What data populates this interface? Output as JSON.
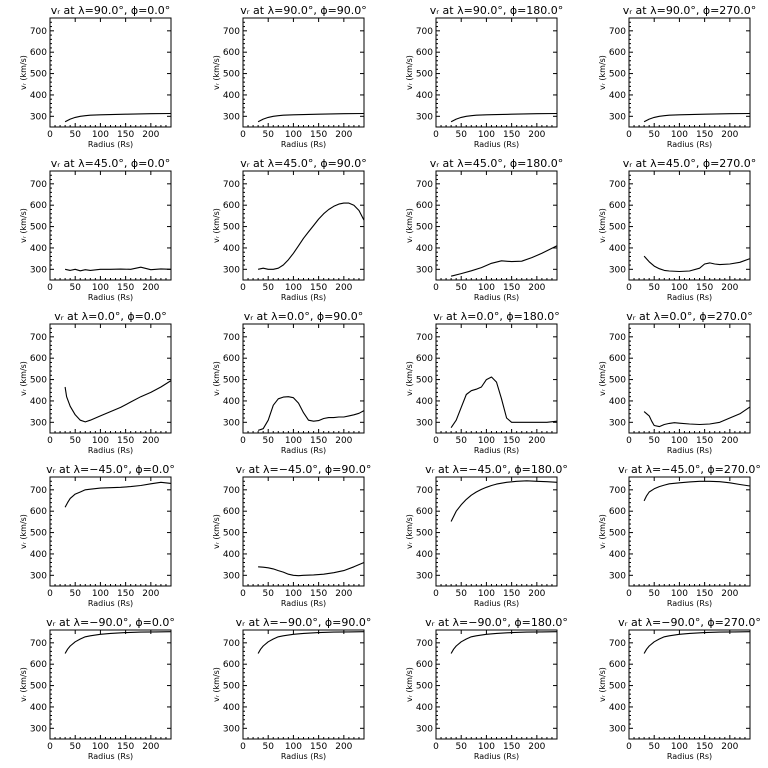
{
  "charts": {
    "xlabel": "Radius (Rs)",
    "ylabel": "vᵣ (km/s)",
    "xticks": [
      "0",
      "50",
      "100",
      "150",
      "200"
    ],
    "yticks": [
      "300",
      "400",
      "500",
      "600",
      "700"
    ]
  },
  "chart_data": [
    {
      "type": "line",
      "title": "vᵣ at λ=90.0°, ϕ=0.0°",
      "xlabel": "Radius (Rs)",
      "ylabel": "vᵣ (km/s)",
      "xlim": [
        0,
        240
      ],
      "ylim": [
        250,
        760
      ],
      "x": [
        30,
        40,
        50,
        60,
        70,
        80,
        100,
        120,
        150,
        200,
        240
      ],
      "y": [
        275,
        287,
        295,
        300,
        303,
        305,
        307,
        308,
        310,
        312,
        313
      ]
    },
    {
      "type": "line",
      "title": "vᵣ at λ=90.0°, ϕ=90.0°",
      "xlabel": "Radius (Rs)",
      "ylabel": "vᵣ (km/s)",
      "xlim": [
        0,
        240
      ],
      "ylim": [
        250,
        760
      ],
      "x": [
        30,
        40,
        50,
        60,
        70,
        80,
        100,
        120,
        150,
        200,
        240
      ],
      "y": [
        275,
        287,
        295,
        300,
        303,
        305,
        307,
        308,
        310,
        312,
        313
      ]
    },
    {
      "type": "line",
      "title": "vᵣ at λ=90.0°, ϕ=180.0°",
      "xlabel": "Radius (Rs)",
      "ylabel": "vᵣ (km/s)",
      "xlim": [
        0,
        240
      ],
      "ylim": [
        250,
        760
      ],
      "x": [
        30,
        40,
        50,
        60,
        70,
        80,
        100,
        120,
        150,
        200,
        240
      ],
      "y": [
        275,
        287,
        295,
        300,
        303,
        305,
        307,
        308,
        310,
        312,
        313
      ]
    },
    {
      "type": "line",
      "title": "vᵣ at λ=90.0°, ϕ=270.0°",
      "xlabel": "Radius (Rs)",
      "ylabel": "vᵣ (km/s)",
      "xlim": [
        0,
        240
      ],
      "ylim": [
        250,
        760
      ],
      "x": [
        30,
        40,
        50,
        60,
        70,
        80,
        100,
        120,
        150,
        200,
        240
      ],
      "y": [
        275,
        287,
        295,
        300,
        303,
        305,
        307,
        308,
        310,
        312,
        313
      ]
    },
    {
      "type": "line",
      "title": "vᵣ at λ=45.0°, ϕ=0.0°",
      "xlabel": "Radius (Rs)",
      "ylabel": "vᵣ (km/s)",
      "xlim": [
        0,
        240
      ],
      "ylim": [
        250,
        760
      ],
      "x": [
        30,
        40,
        50,
        60,
        70,
        80,
        100,
        120,
        140,
        160,
        180,
        200,
        220,
        240
      ],
      "y": [
        300,
        295,
        300,
        293,
        298,
        295,
        300,
        300,
        301,
        300,
        310,
        298,
        302,
        300
      ]
    },
    {
      "type": "line",
      "title": "vᵣ at λ=45.0°, ϕ=90.0°",
      "xlabel": "Radius (Rs)",
      "ylabel": "vᵣ (km/s)",
      "xlim": [
        0,
        240
      ],
      "ylim": [
        250,
        760
      ],
      "x": [
        30,
        40,
        50,
        60,
        70,
        80,
        90,
        100,
        110,
        120,
        130,
        140,
        150,
        160,
        170,
        180,
        190,
        200,
        210,
        220,
        230,
        240
      ],
      "y": [
        300,
        305,
        300,
        300,
        305,
        320,
        345,
        375,
        410,
        445,
        475,
        505,
        535,
        560,
        580,
        595,
        605,
        610,
        610,
        600,
        575,
        530
      ]
    },
    {
      "type": "line",
      "title": "vᵣ at λ=45.0°, ϕ=180.0°",
      "xlabel": "Radius (Rs)",
      "ylabel": "vᵣ (km/s)",
      "xlim": [
        0,
        240
      ],
      "ylim": [
        250,
        760
      ],
      "x": [
        30,
        50,
        70,
        90,
        110,
        130,
        150,
        170,
        190,
        210,
        240
      ],
      "y": [
        268,
        280,
        293,
        308,
        328,
        340,
        336,
        338,
        355,
        375,
        410
      ]
    },
    {
      "type": "line",
      "title": "vᵣ at λ=45.0°, ϕ=270.0°",
      "xlabel": "Radius (Rs)",
      "ylabel": "vᵣ (km/s)",
      "xlim": [
        0,
        240
      ],
      "ylim": [
        250,
        760
      ],
      "x": [
        30,
        40,
        50,
        60,
        70,
        80,
        100,
        120,
        140,
        150,
        160,
        170,
        180,
        200,
        220,
        240
      ],
      "y": [
        362,
        335,
        315,
        303,
        295,
        292,
        290,
        292,
        305,
        325,
        330,
        325,
        322,
        325,
        333,
        350
      ]
    },
    {
      "type": "line",
      "title": "vᵣ at λ=0.0°, ϕ=0.0°",
      "xlabel": "Radius (Rs)",
      "ylabel": "vᵣ (km/s)",
      "xlim": [
        0,
        240
      ],
      "ylim": [
        250,
        760
      ],
      "x": [
        30,
        33,
        40,
        50,
        60,
        70,
        80,
        100,
        120,
        140,
        160,
        180,
        200,
        220,
        240
      ],
      "y": [
        465,
        420,
        375,
        335,
        310,
        302,
        310,
        330,
        350,
        370,
        395,
        420,
        440,
        465,
        495
      ]
    },
    {
      "type": "line",
      "title": "vᵣ at λ=0.0°, ϕ=90.0°",
      "xlabel": "Radius (Rs)",
      "ylabel": "vᵣ (km/s)",
      "xlim": [
        0,
        240
      ],
      "ylim": [
        250,
        760
      ],
      "x": [
        30,
        40,
        50,
        60,
        70,
        80,
        90,
        100,
        110,
        120,
        130,
        140,
        150,
        160,
        170,
        180,
        190,
        200,
        210,
        220,
        230,
        240
      ],
      "y": [
        262,
        270,
        310,
        380,
        410,
        418,
        420,
        415,
        390,
        345,
        310,
        305,
        308,
        318,
        322,
        322,
        325,
        325,
        330,
        335,
        342,
        355
      ]
    },
    {
      "type": "line",
      "title": "vᵣ at λ=0.0°, ϕ=180.0°",
      "xlabel": "Radius (Rs)",
      "ylabel": "vᵣ (km/s)",
      "xlim": [
        0,
        240
      ],
      "ylim": [
        250,
        760
      ],
      "x": [
        30,
        40,
        50,
        60,
        70,
        80,
        90,
        100,
        110,
        120,
        130,
        140,
        150,
        160,
        180,
        200,
        220,
        240
      ],
      "y": [
        275,
        310,
        370,
        430,
        448,
        455,
        465,
        500,
        512,
        488,
        410,
        320,
        300,
        300,
        300,
        300,
        300,
        305
      ]
    },
    {
      "type": "line",
      "title": "vᵣ at λ=0.0°, ϕ=270.0°",
      "xlabel": "Radius (Rs)",
      "ylabel": "vᵣ (km/s)",
      "xlim": [
        0,
        240
      ],
      "ylim": [
        250,
        760
      ],
      "x": [
        30,
        40,
        45,
        50,
        60,
        70,
        80,
        90,
        100,
        120,
        140,
        160,
        180,
        200,
        220,
        240
      ],
      "y": [
        350,
        330,
        305,
        285,
        280,
        290,
        295,
        298,
        296,
        292,
        290,
        292,
        300,
        320,
        340,
        372
      ]
    },
    {
      "type": "line",
      "title": "vᵣ at λ=−45.0°, ϕ=0.0°",
      "xlabel": "Radius (Rs)",
      "ylabel": "vᵣ (km/s)",
      "xlim": [
        0,
        240
      ],
      "ylim": [
        250,
        760
      ],
      "x": [
        30,
        35,
        40,
        50,
        60,
        70,
        80,
        100,
        120,
        140,
        160,
        180,
        200,
        220,
        240
      ],
      "y": [
        618,
        640,
        660,
        680,
        690,
        700,
        703,
        708,
        710,
        712,
        715,
        720,
        728,
        735,
        730
      ]
    },
    {
      "type": "line",
      "title": "vᵣ at λ=−45.0°, ϕ=90.0°",
      "xlabel": "Radius (Rs)",
      "ylabel": "vᵣ (km/s)",
      "xlim": [
        0,
        240
      ],
      "ylim": [
        250,
        760
      ],
      "x": [
        30,
        40,
        50,
        60,
        70,
        80,
        90,
        100,
        110,
        120,
        140,
        160,
        180,
        200,
        220,
        240
      ],
      "y": [
        340,
        338,
        335,
        330,
        322,
        315,
        305,
        300,
        298,
        300,
        302,
        305,
        312,
        322,
        340,
        360
      ]
    },
    {
      "type": "line",
      "title": "vᵣ at λ=−45.0°, ϕ=180.0°",
      "xlabel": "Radius (Rs)",
      "ylabel": "vᵣ (km/s)",
      "xlim": [
        0,
        240
      ],
      "ylim": [
        250,
        760
      ],
      "x": [
        30,
        35,
        40,
        50,
        60,
        70,
        80,
        90,
        100,
        110,
        120,
        140,
        160,
        180,
        200,
        220,
        240
      ],
      "y": [
        552,
        575,
        600,
        630,
        655,
        675,
        690,
        702,
        712,
        720,
        727,
        735,
        740,
        742,
        740,
        738,
        735
      ]
    },
    {
      "type": "line",
      "title": "vᵣ at λ=−45.0°, ϕ=270.0°",
      "xlabel": "Radius (Rs)",
      "ylabel": "vᵣ (km/s)",
      "xlim": [
        0,
        240
      ],
      "ylim": [
        250,
        760
      ],
      "x": [
        30,
        35,
        40,
        50,
        60,
        70,
        80,
        100,
        120,
        140,
        160,
        180,
        200,
        220,
        240
      ],
      "y": [
        648,
        672,
        690,
        705,
        715,
        722,
        728,
        733,
        737,
        740,
        740,
        738,
        733,
        725,
        718
      ]
    },
    {
      "type": "line",
      "title": "vᵣ at λ=−90.0°, ϕ=0.0°",
      "xlabel": "Radius (Rs)",
      "ylabel": "vᵣ (km/s)",
      "xlim": [
        0,
        240
      ],
      "ylim": [
        250,
        760
      ],
      "x": [
        30,
        35,
        40,
        50,
        60,
        70,
        80,
        100,
        120,
        150,
        180,
        210,
        240
      ],
      "y": [
        650,
        670,
        685,
        705,
        718,
        728,
        733,
        740,
        744,
        748,
        750,
        751,
        752
      ]
    },
    {
      "type": "line",
      "title": "vᵣ at λ=−90.0°, ϕ=90.0°",
      "xlabel": "Radius (Rs)",
      "ylabel": "vᵣ (km/s)",
      "xlim": [
        0,
        240
      ],
      "ylim": [
        250,
        760
      ],
      "x": [
        30,
        35,
        40,
        50,
        60,
        70,
        80,
        100,
        120,
        150,
        180,
        210,
        240
      ],
      "y": [
        650,
        670,
        685,
        705,
        718,
        728,
        733,
        740,
        744,
        748,
        750,
        751,
        752
      ]
    },
    {
      "type": "line",
      "title": "vᵣ at λ=−90.0°, ϕ=180.0°",
      "xlabel": "Radius (Rs)",
      "ylabel": "vᵣ (km/s)",
      "xlim": [
        0,
        240
      ],
      "ylim": [
        250,
        760
      ],
      "x": [
        30,
        35,
        40,
        50,
        60,
        70,
        80,
        100,
        120,
        150,
        180,
        210,
        240
      ],
      "y": [
        650,
        670,
        685,
        705,
        718,
        728,
        733,
        740,
        744,
        748,
        750,
        751,
        752
      ]
    },
    {
      "type": "line",
      "title": "vᵣ at λ=−90.0°, ϕ=270.0°",
      "xlabel": "Radius (Rs)",
      "ylabel": "vᵣ (km/s)",
      "xlim": [
        0,
        240
      ],
      "ylim": [
        250,
        760
      ],
      "x": [
        30,
        35,
        40,
        50,
        60,
        70,
        80,
        100,
        120,
        150,
        180,
        210,
        240
      ],
      "y": [
        650,
        670,
        685,
        705,
        718,
        728,
        733,
        740,
        744,
        748,
        750,
        751,
        752
      ]
    }
  ]
}
